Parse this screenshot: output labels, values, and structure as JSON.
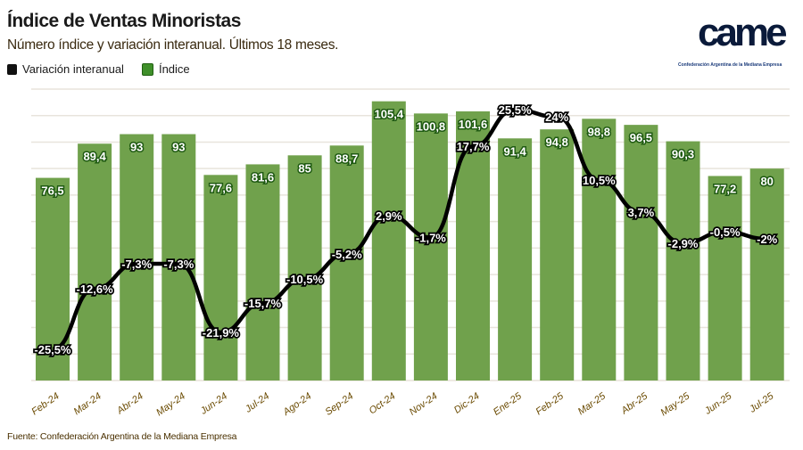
{
  "title": "Índice de Ventas Minoristas",
  "subtitle": "Número índice y variación interanual. Últimos 18 meses.",
  "legend": [
    {
      "label": "Variación interanual",
      "color": "#111111"
    },
    {
      "label": "Índice",
      "color": "#3f8f2a"
    }
  ],
  "logo": {
    "text": "came",
    "subtitle": "Confederación Argentina de la Mediana Empresa"
  },
  "source": "Fuente: Confederación Argentina de la Mediana Empresa",
  "chart_data": {
    "type": "bar+line",
    "categories": [
      "Feb-24",
      "Mar-24",
      "Abr-24",
      "May-24",
      "Jun-24",
      "Jul-24",
      "Ago-24",
      "Sep-24",
      "Oct-24",
      "Nov-24",
      "Dic-24",
      "Ene-25",
      "Feb-25",
      "Mar-25",
      "Abr-25",
      "May-25",
      "Jun-25",
      "Jul-25"
    ],
    "series": [
      {
        "name": "Índice",
        "type": "bar",
        "color": "#70a14c",
        "values": [
          76.5,
          89.4,
          93,
          93,
          77.6,
          81.6,
          85,
          88.7,
          105.4,
          100.8,
          101.6,
          91.4,
          94.8,
          98.8,
          96.5,
          90.3,
          77.2,
          80
        ],
        "labels": [
          "76,5",
          "89,4",
          "93",
          "93",
          "77,6",
          "81,6",
          "85",
          "88,7",
          "105,4",
          "100,8",
          "101,6",
          "91,4",
          "94,8",
          "98,8",
          "96,5",
          "90,3",
          "77,2",
          "80"
        ]
      },
      {
        "name": "Variación interanual",
        "type": "line",
        "color": "#000000",
        "values": [
          -25.5,
          -12.6,
          -7.3,
          -7.3,
          -21.9,
          -15.7,
          -10.5,
          -5.2,
          2.9,
          -1.7,
          17.7,
          25.5,
          24,
          10.5,
          3.7,
          -2.9,
          -0.5,
          -2
        ],
        "labels": [
          "-25,5%",
          "-12,6%",
          "-7,3%",
          "-7,3%",
          "-21,9%",
          "-15,7%",
          "-10,5%",
          "-5,2%",
          "2,9%",
          "-1,7%",
          "17,7%",
          "25,5%",
          "24%",
          "10,5%",
          "3,7%",
          "-2,9%",
          "-0,5%",
          "-2%"
        ]
      }
    ],
    "bar_ylim": [
      0,
      110
    ],
    "line_ylim": [
      -32,
      32
    ],
    "grid": true
  }
}
